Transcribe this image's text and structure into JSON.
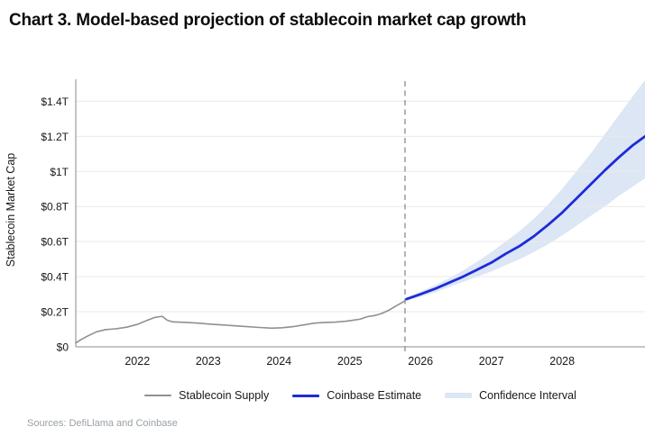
{
  "footer": {
    "sources": "Sources: DefiLlama and Coinbase"
  },
  "colors": {
    "background": "#ffffff",
    "grid": "#e9e9e9",
    "axis": "#a3a3a3",
    "dashed_line": "#9a9a9a",
    "tick_text": "#17181a",
    "title_text": "#0a0b0d",
    "source_text": "#9aa0a6"
  },
  "chart_data": {
    "type": "line",
    "title": "Chart 3. Model-based projection of stablecoin market cap growth",
    "ylabel": "Stablecoin Market Cap",
    "xlabel": "",
    "units": "USD trillions",
    "xlim": [
      2021.13,
      2029.17
    ],
    "ylim": [
      0,
      1.515
    ],
    "grid": "horizontal",
    "legend_position": "bottom-center",
    "projection_start": 2025.78,
    "x_tick_values": [
      2022,
      2023,
      2024,
      2025,
      2026,
      2027,
      2028
    ],
    "x_tick_labels": [
      "2022",
      "2023",
      "2024",
      "2025",
      "2026",
      "2027",
      "2028"
    ],
    "y_tick_values": [
      0,
      0.2,
      0.4,
      0.6,
      0.8,
      1.0,
      1.2,
      1.4
    ],
    "y_tick_labels": [
      "$0",
      "$0.2T",
      "$0.4T",
      "$0.6T",
      "$0.8T",
      "$1T",
      "$1.2T",
      "$1.4T"
    ],
    "series": [
      {
        "name": "Stablecoin Supply",
        "type": "line",
        "color": "#909090",
        "width": 1.6,
        "points": [
          [
            2021.13,
            0.022
          ],
          [
            2021.2,
            0.04
          ],
          [
            2021.3,
            0.062
          ],
          [
            2021.42,
            0.085
          ],
          [
            2021.55,
            0.098
          ],
          [
            2021.7,
            0.103
          ],
          [
            2021.85,
            0.112
          ],
          [
            2022.0,
            0.128
          ],
          [
            2022.12,
            0.148
          ],
          [
            2022.25,
            0.168
          ],
          [
            2022.35,
            0.174
          ],
          [
            2022.42,
            0.152
          ],
          [
            2022.5,
            0.142
          ],
          [
            2022.7,
            0.139
          ],
          [
            2022.9,
            0.134
          ],
          [
            2023.0,
            0.13
          ],
          [
            2023.2,
            0.125
          ],
          [
            2023.45,
            0.118
          ],
          [
            2023.7,
            0.111
          ],
          [
            2023.9,
            0.106
          ],
          [
            2024.05,
            0.109
          ],
          [
            2024.2,
            0.115
          ],
          [
            2024.35,
            0.125
          ],
          [
            2024.5,
            0.135
          ],
          [
            2024.65,
            0.139
          ],
          [
            2024.8,
            0.141
          ],
          [
            2024.95,
            0.146
          ],
          [
            2025.05,
            0.152
          ],
          [
            2025.15,
            0.158
          ],
          [
            2025.25,
            0.172
          ],
          [
            2025.35,
            0.178
          ],
          [
            2025.45,
            0.19
          ],
          [
            2025.55,
            0.208
          ],
          [
            2025.65,
            0.232
          ],
          [
            2025.72,
            0.248
          ],
          [
            2025.78,
            0.262
          ]
        ]
      },
      {
        "name": "Coinbase Estimate",
        "type": "line",
        "color": "#1c2cd8",
        "width": 2.8,
        "points": [
          [
            2025.8,
            0.272
          ],
          [
            2026.0,
            0.3
          ],
          [
            2026.2,
            0.33
          ],
          [
            2026.4,
            0.365
          ],
          [
            2026.6,
            0.4
          ],
          [
            2026.8,
            0.44
          ],
          [
            2027.0,
            0.48
          ],
          [
            2027.2,
            0.53
          ],
          [
            2027.4,
            0.575
          ],
          [
            2027.6,
            0.63
          ],
          [
            2027.8,
            0.695
          ],
          [
            2028.0,
            0.765
          ],
          [
            2028.2,
            0.845
          ],
          [
            2028.4,
            0.925
          ],
          [
            2028.6,
            1.005
          ],
          [
            2028.8,
            1.08
          ],
          [
            2029.0,
            1.15
          ],
          [
            2029.17,
            1.2
          ]
        ]
      },
      {
        "name": "Confidence Interval",
        "type": "band",
        "color": "#dce6f4",
        "upper": [
          [
            2025.8,
            0.28
          ],
          [
            2026.0,
            0.315
          ],
          [
            2026.2,
            0.35
          ],
          [
            2026.4,
            0.39
          ],
          [
            2026.6,
            0.435
          ],
          [
            2026.8,
            0.485
          ],
          [
            2027.0,
            0.54
          ],
          [
            2027.2,
            0.6
          ],
          [
            2027.4,
            0.66
          ],
          [
            2027.6,
            0.73
          ],
          [
            2027.8,
            0.81
          ],
          [
            2028.0,
            0.9
          ],
          [
            2028.2,
            1.0
          ],
          [
            2028.4,
            1.1
          ],
          [
            2028.6,
            1.21
          ],
          [
            2028.8,
            1.32
          ],
          [
            2029.0,
            1.43
          ],
          [
            2029.17,
            1.52
          ]
        ],
        "lower": [
          [
            2025.8,
            0.264
          ],
          [
            2026.0,
            0.285
          ],
          [
            2026.2,
            0.31
          ],
          [
            2026.4,
            0.34
          ],
          [
            2026.6,
            0.37
          ],
          [
            2026.8,
            0.4
          ],
          [
            2027.0,
            0.43
          ],
          [
            2027.2,
            0.465
          ],
          [
            2027.4,
            0.5
          ],
          [
            2027.6,
            0.54
          ],
          [
            2027.8,
            0.585
          ],
          [
            2028.0,
            0.635
          ],
          [
            2028.2,
            0.69
          ],
          [
            2028.4,
            0.745
          ],
          [
            2028.6,
            0.8
          ],
          [
            2028.8,
            0.86
          ],
          [
            2029.0,
            0.915
          ],
          [
            2029.17,
            0.96
          ]
        ]
      }
    ]
  }
}
